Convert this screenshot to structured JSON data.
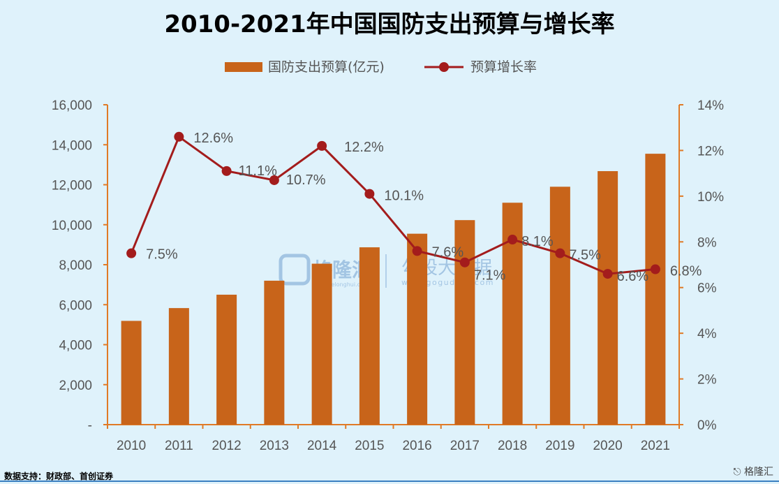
{
  "chart_data": {
    "type": "bar+line",
    "title": "2010-2021年中国国防支出预算与增长率",
    "categories": [
      "2010",
      "2011",
      "2012",
      "2013",
      "2014",
      "2015",
      "2016",
      "2017",
      "2018",
      "2019",
      "2020",
      "2021"
    ],
    "bar_series": {
      "name": "国防支出预算(亿元)",
      "values": [
        5190,
        5830,
        6500,
        7200,
        8050,
        8870,
        9550,
        10230,
        11100,
        11900,
        12680,
        13550
      ],
      "color": "#c8641a"
    },
    "line_series": {
      "name": "预算增长率",
      "values": [
        7.5,
        12.6,
        11.1,
        10.7,
        12.2,
        10.1,
        7.6,
        7.1,
        8.1,
        7.5,
        6.6,
        6.8
      ],
      "labels": [
        "7.5%",
        "12.6%",
        "11.1%",
        "10.7%",
        "12.2%",
        "10.1%",
        "7.6%",
        "7.1%",
        "8.1%",
        "7.5%",
        "6.6%",
        "6.8%"
      ],
      "color": "#a31c1c"
    },
    "y_left": {
      "ylim": [
        0,
        16000
      ],
      "ticks": [
        "-",
        "2,000",
        "4,000",
        "6,000",
        "8,000",
        "10,000",
        "12,000",
        "14,000",
        "16,000"
      ]
    },
    "y_right": {
      "ylim": [
        0,
        14
      ],
      "ticks": [
        "0%",
        "2%",
        "4%",
        "6%",
        "8%",
        "10%",
        "12%",
        "14%"
      ]
    },
    "legend_position": "top-center",
    "grid": false
  },
  "watermark": {
    "brand1": "格隆汇",
    "brand1_url": "www.gelonghui.com",
    "brand2": "勾股大数据",
    "brand2_url": "www.gogudata.com"
  },
  "footer": {
    "source": "数据支持：财政部、首创证券",
    "brand": "格隆汇"
  },
  "colors": {
    "background": "#dff2fb",
    "axis": "#e07a26"
  }
}
